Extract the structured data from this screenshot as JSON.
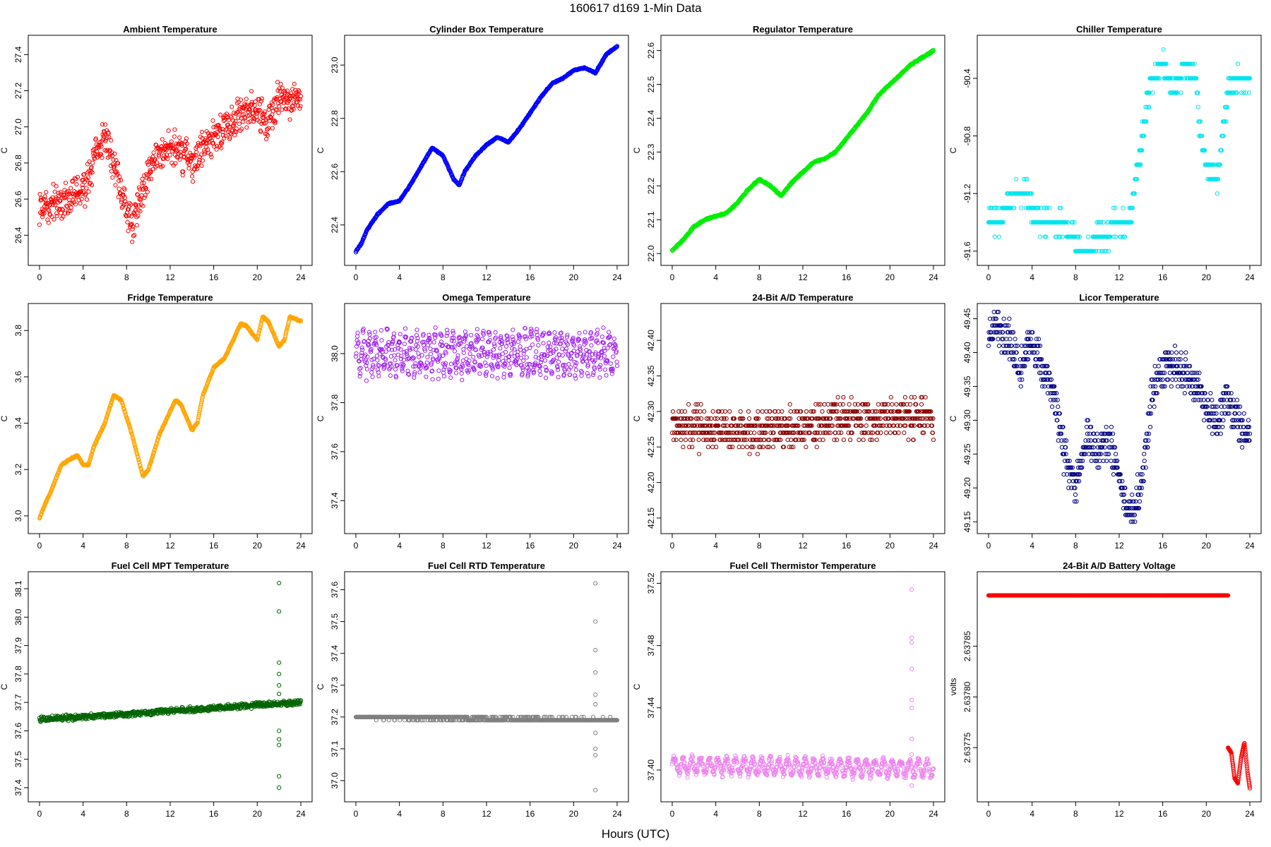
{
  "figure": {
    "title": "160617   d169   1-Min Data",
    "xcaption": "Hours (UTC)",
    "xticks": [
      0,
      4,
      8,
      12,
      16,
      20,
      24
    ]
  },
  "chart_data": [
    {
      "type": "scatter",
      "title": "Ambient Temperature",
      "ylabel": "C",
      "color": "#ff0000",
      "xlim": [
        0,
        24
      ],
      "ylim": [
        26.28,
        27.46
      ],
      "yticks": [
        "26.4",
        "26.6",
        "26.8",
        "27.0",
        "27.2",
        "27.4"
      ],
      "trend": [
        [
          0,
          26.55
        ],
        [
          2,
          26.6
        ],
        [
          4,
          26.65
        ],
        [
          6,
          26.95
        ],
        [
          7,
          26.75
        ],
        [
          8.5,
          26.45
        ],
        [
          10,
          26.75
        ],
        [
          12,
          26.9
        ],
        [
          14,
          26.8
        ],
        [
          16,
          26.95
        ],
        [
          18,
          27.05
        ],
        [
          20,
          27.1
        ],
        [
          21,
          27.0
        ],
        [
          22,
          27.15
        ],
        [
          24,
          27.15
        ]
      ],
      "noise": 0.12,
      "mode": "scatter"
    },
    {
      "type": "scatter",
      "title": "Cylinder Box Temperature",
      "ylabel": "C",
      "color": "#0000ff",
      "xlim": [
        0,
        24
      ],
      "ylim": [
        22.28,
        23.08
      ],
      "yticks": [
        "22.4",
        "22.6",
        "22.8",
        "23.0"
      ],
      "trend": [
        [
          0,
          22.3
        ],
        [
          0.5,
          22.33
        ],
        [
          1,
          22.38
        ],
        [
          2,
          22.44
        ],
        [
          3,
          22.48
        ],
        [
          4,
          22.49
        ],
        [
          5,
          22.55
        ],
        [
          6,
          22.62
        ],
        [
          7,
          22.69
        ],
        [
          8,
          22.66
        ],
        [
          9,
          22.57
        ],
        [
          9.5,
          22.55
        ],
        [
          10,
          22.6
        ],
        [
          11,
          22.66
        ],
        [
          12,
          22.7
        ],
        [
          13,
          22.73
        ],
        [
          14,
          22.71
        ],
        [
          15,
          22.76
        ],
        [
          16,
          22.82
        ],
        [
          17,
          22.88
        ],
        [
          18,
          22.93
        ],
        [
          19,
          22.95
        ],
        [
          20,
          22.98
        ],
        [
          21,
          22.99
        ],
        [
          22,
          22.97
        ],
        [
          23,
          23.04
        ],
        [
          24,
          23.07
        ]
      ],
      "noise": 0.003,
      "mode": "line"
    },
    {
      "type": "scatter",
      "title": "Regulator Temperature",
      "ylabel": "C",
      "color": "#00ee00",
      "xlim": [
        0,
        24
      ],
      "ylim": [
        21.99,
        22.62
      ],
      "yticks": [
        "22.0",
        "22.1",
        "22.2",
        "22.3",
        "22.4",
        "22.5",
        "22.6"
      ],
      "trend": [
        [
          0,
          22.01
        ],
        [
          1,
          22.04
        ],
        [
          2,
          22.08
        ],
        [
          3,
          22.1
        ],
        [
          4,
          22.11
        ],
        [
          5,
          22.12
        ],
        [
          6,
          22.15
        ],
        [
          7,
          22.19
        ],
        [
          8,
          22.22
        ],
        [
          9,
          22.2
        ],
        [
          10,
          22.17
        ],
        [
          11,
          22.21
        ],
        [
          12,
          22.24
        ],
        [
          13,
          22.27
        ],
        [
          14,
          22.28
        ],
        [
          15,
          22.3
        ],
        [
          16,
          22.34
        ],
        [
          17,
          22.38
        ],
        [
          18,
          22.42
        ],
        [
          19,
          22.47
        ],
        [
          20,
          22.5
        ],
        [
          21,
          22.53
        ],
        [
          22,
          22.56
        ],
        [
          23,
          22.58
        ],
        [
          24,
          22.6
        ]
      ],
      "noise": 0.003,
      "mode": "line"
    },
    {
      "type": "scatter",
      "title": "Chiller Temperature",
      "ylabel": "C",
      "color": "#00e5ee",
      "xlim": [
        0,
        24
      ],
      "ylim": [
        -91.64,
        -90.16
      ],
      "yticks": [
        "-91.6",
        "-91.2",
        "-90.8",
        "-90.4"
      ],
      "trend": [
        [
          0,
          -91.4
        ],
        [
          1,
          -91.4
        ],
        [
          1.5,
          -91.3
        ],
        [
          2.5,
          -91.2
        ],
        [
          3.5,
          -91.2
        ],
        [
          4,
          -91.3
        ],
        [
          4.5,
          -91.4
        ],
        [
          7,
          -91.4
        ],
        [
          7.5,
          -91.5
        ],
        [
          8.5,
          -91.6
        ],
        [
          9.5,
          -91.6
        ],
        [
          10,
          -91.5
        ],
        [
          11,
          -91.5
        ],
        [
          11.5,
          -91.4
        ],
        [
          13,
          -91.4
        ],
        [
          13.5,
          -91.1
        ],
        [
          14,
          -90.9
        ],
        [
          14.5,
          -90.6
        ],
        [
          15,
          -90.4
        ],
        [
          16,
          -90.3
        ],
        [
          17,
          -90.5
        ],
        [
          18,
          -90.3
        ],
        [
          19,
          -90.4
        ],
        [
          19.5,
          -90.8
        ],
        [
          20,
          -91.0
        ],
        [
          21,
          -91.1
        ],
        [
          22,
          -90.5
        ],
        [
          23,
          -90.4
        ],
        [
          24,
          -90.4
        ]
      ],
      "noise": 0.1,
      "quant": 0.1,
      "mode": "scatter"
    },
    {
      "type": "scatter",
      "title": "Fridge Temperature",
      "ylabel": "C",
      "color": "#ffa500",
      "xlim": [
        0,
        24
      ],
      "ylim": [
        2.96,
        3.88
      ],
      "yticks": [
        "3.0",
        "3.2",
        "3.4",
        "3.6",
        "3.8"
      ],
      "trend": [
        [
          0,
          2.99
        ],
        [
          0.5,
          3.05
        ],
        [
          1,
          3.1
        ],
        [
          2,
          3.22
        ],
        [
          3,
          3.25
        ],
        [
          3.5,
          3.26
        ],
        [
          4,
          3.22
        ],
        [
          4.5,
          3.22
        ],
        [
          5,
          3.3
        ],
        [
          6,
          3.4
        ],
        [
          6.8,
          3.52
        ],
        [
          7.5,
          3.5
        ],
        [
          8.5,
          3.35
        ],
        [
          9.5,
          3.17
        ],
        [
          10,
          3.2
        ],
        [
          11,
          3.35
        ],
        [
          12,
          3.45
        ],
        [
          12.5,
          3.5
        ],
        [
          13,
          3.48
        ],
        [
          14,
          3.37
        ],
        [
          14.5,
          3.4
        ],
        [
          15,
          3.52
        ],
        [
          16,
          3.64
        ],
        [
          17,
          3.68
        ],
        [
          18,
          3.78
        ],
        [
          18.5,
          3.83
        ],
        [
          19,
          3.82
        ],
        [
          20,
          3.76
        ],
        [
          20.5,
          3.86
        ],
        [
          21,
          3.84
        ],
        [
          22,
          3.73
        ],
        [
          22.5,
          3.76
        ],
        [
          23,
          3.86
        ],
        [
          24,
          3.84
        ]
      ],
      "noise": 0.004,
      "mode": "line"
    },
    {
      "type": "scatter",
      "title": "Omega Temperature",
      "ylabel": "C",
      "color": "#a020f0",
      "xlim": [
        0,
        24
      ],
      "ylim": [
        37.3,
        38.17
      ],
      "yticks": [
        "37.4",
        "37.6",
        "37.8",
        "38.0"
      ],
      "trend": [
        [
          0,
          38.0
        ],
        [
          24,
          38.0
        ]
      ],
      "noise": 0.05,
      "osc": [
        0.07,
        0.55
      ],
      "mode": "line"
    },
    {
      "type": "scatter",
      "title": "24-Bit A/D Temperature",
      "ylabel": "C",
      "color": "#8b0000",
      "xlim": [
        0,
        24
      ],
      "ylim": [
        42.14,
        42.44
      ],
      "yticks": [
        "42.15",
        "42.20",
        "42.25",
        "42.30",
        "42.35",
        "42.40"
      ],
      "trend": [
        [
          0,
          42.28
        ],
        [
          8,
          42.27
        ],
        [
          16,
          42.29
        ],
        [
          24,
          42.29
        ]
      ],
      "noise": 0.035,
      "quant": 0.01,
      "mode": "scatter"
    },
    {
      "type": "scatter",
      "title": "Licor Temperature",
      "ylabel": "C",
      "color": "#000080",
      "xlim": [
        0,
        24
      ],
      "ylim": [
        49.145,
        49.46
      ],
      "yticks": [
        "49.15",
        "49.20",
        "49.25",
        "49.30",
        "49.35",
        "49.40",
        "49.45"
      ],
      "trend": [
        [
          0,
          49.43
        ],
        [
          1,
          49.44
        ],
        [
          2,
          49.41
        ],
        [
          3,
          49.38
        ],
        [
          4,
          49.41
        ],
        [
          5,
          49.38
        ],
        [
          6,
          49.34
        ],
        [
          7,
          49.25
        ],
        [
          8,
          49.2
        ],
        [
          9,
          49.28
        ],
        [
          10,
          49.25
        ],
        [
          11,
          49.27
        ],
        [
          12,
          49.22
        ],
        [
          13,
          49.16
        ],
        [
          14,
          49.2
        ],
        [
          15,
          49.33
        ],
        [
          16,
          49.38
        ],
        [
          17,
          49.38
        ],
        [
          18,
          49.37
        ],
        [
          19,
          49.35
        ],
        [
          20,
          49.32
        ],
        [
          21,
          49.3
        ],
        [
          22,
          49.33
        ],
        [
          23,
          49.3
        ],
        [
          24,
          49.27
        ]
      ],
      "noise": 0.035,
      "quant": 0.01,
      "mode": "scatter"
    },
    {
      "type": "scatter",
      "title": "Fuel Cell MPT Temperature",
      "ylabel": "C",
      "color": "#006400",
      "xlim": [
        0,
        24
      ],
      "ylim": [
        37.38,
        38.13
      ],
      "yticks": [
        "37.4",
        "37.5",
        "37.6",
        "37.7",
        "37.8",
        "37.9",
        "38.0",
        "38.1"
      ],
      "trend": [
        [
          0,
          37.64
        ],
        [
          24,
          37.7
        ]
      ],
      "noise": 0.012,
      "mode": "scatter",
      "spike": {
        "x": 22.0,
        "values": [
          38.12,
          38.02,
          37.84,
          37.8,
          37.76,
          37.73,
          37.6,
          37.57,
          37.55,
          37.44,
          37.4
        ]
      }
    },
    {
      "type": "scatter",
      "title": "Fuel Cell RTD Temperature",
      "ylabel": "C",
      "color": "#808080",
      "xlim": [
        0,
        24
      ],
      "ylim": [
        36.96,
        37.63
      ],
      "yticks": [
        "37.0",
        "37.1",
        "37.2",
        "37.3",
        "37.4",
        "37.5",
        "37.6"
      ],
      "trend": [
        [
          0,
          37.2
        ],
        [
          24,
          37.19
        ]
      ],
      "noise": 0.006,
      "quant": 0.01,
      "mode": "scatter",
      "spike": {
        "x": 22.0,
        "values": [
          37.62,
          37.5,
          37.41,
          37.34,
          37.27,
          37.24,
          37.15,
          37.1,
          37.08,
          36.97
        ]
      }
    },
    {
      "type": "scatter",
      "title": "Fuel Cell Thermistor Temperature",
      "ylabel": "C",
      "color": "#ee82ee",
      "xlim": [
        0,
        24
      ],
      "ylim": [
        37.385,
        37.522
      ],
      "yticks": [
        "37.40",
        "37.44",
        "37.48",
        "37.52"
      ],
      "trend": [
        [
          0,
          37.403
        ],
        [
          24,
          37.401
        ]
      ],
      "noise": 0.003,
      "osc": [
        0.005,
        0.8
      ],
      "mode": "line",
      "spike": {
        "x": 22.0,
        "values": [
          37.516,
          37.485,
          37.482,
          37.465,
          37.445,
          37.44,
          37.42,
          37.41,
          37.39
        ]
      }
    },
    {
      "type": "scatter",
      "title": "24-Bit A/D Battery Voltage",
      "ylabel": "volts",
      "color": "#ff0000",
      "xlim": [
        0,
        24
      ],
      "ylim": [
        2.637705,
        2.637915
      ],
      "yticks": [
        "2.63775",
        "2.63780",
        "2.63785"
      ],
      "trend": [
        [
          0,
          2.6379
        ],
        [
          22,
          2.6379
        ]
      ],
      "noise": 0,
      "mode": "line",
      "tail": [
        [
          22,
          2.63775
        ],
        [
          22.3,
          2.637745
        ],
        [
          22.6,
          2.63772
        ],
        [
          22.9,
          2.637715
        ],
        [
          23.2,
          2.63774
        ],
        [
          23.5,
          2.637755
        ],
        [
          23.8,
          2.637725
        ],
        [
          24,
          2.63771
        ]
      ]
    }
  ]
}
